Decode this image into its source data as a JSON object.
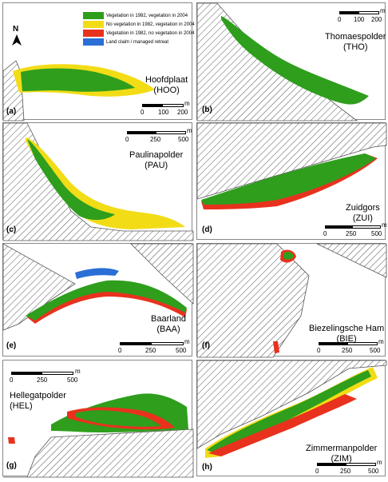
{
  "colors": {
    "green": "#2e9e1c",
    "yellow": "#f2dc16",
    "red": "#e8321e",
    "blue": "#2a6fd6",
    "hatch": "#555555"
  },
  "legend": {
    "items": [
      {
        "label": "Vegetation in 1982, vegetation in 2004",
        "color": "#2e9e1c"
      },
      {
        "label": "No vegetation in 1982, vegetation in 2004",
        "color": "#f2dc16"
      },
      {
        "label": "Vegetation in 1982, no vegetation in 2004",
        "color": "#e8321e"
      },
      {
        "label": "Land claim / managed retreat",
        "color": "#2a6fd6"
      }
    ]
  },
  "north": {
    "label": "N"
  },
  "panels": [
    {
      "id": "a",
      "letter": "(a)",
      "name": "Hoofdplaat",
      "code": "(HOO)",
      "scale": {
        "unit": "m",
        "labels": [
          "0",
          "100",
          "200"
        ]
      }
    },
    {
      "id": "b",
      "letter": "(b)",
      "name": "Thomaespolder",
      "code": "(THO)",
      "scale": {
        "unit": "m",
        "labels": [
          "0",
          "100",
          "200"
        ]
      }
    },
    {
      "id": "c",
      "letter": "(c)",
      "name": "Paulinapolder",
      "code": "(PAU)",
      "scale": {
        "unit": "m",
        "labels": [
          "0",
          "250",
          "500"
        ]
      }
    },
    {
      "id": "d",
      "letter": "(d)",
      "name": "Zuidgors",
      "code": "(ZUI)",
      "scale": {
        "unit": "m",
        "labels": [
          "0",
          "250",
          "500"
        ]
      }
    },
    {
      "id": "e",
      "letter": "(e)",
      "name": "Baarland",
      "code": "(BAA)",
      "scale": {
        "unit": "m",
        "labels": [
          "0",
          "250",
          "500"
        ]
      }
    },
    {
      "id": "f",
      "letter": "(f)",
      "name": "Biezelingsche Ham",
      "code": "(BIE)",
      "scale": {
        "unit": "m",
        "labels": [
          "0",
          "250",
          "500"
        ]
      }
    },
    {
      "id": "g",
      "letter": "(g)",
      "name": "Hellegatpolder",
      "code": "(HEL)",
      "scale": {
        "unit": "m",
        "labels": [
          "0",
          "250",
          "500"
        ]
      }
    },
    {
      "id": "h",
      "letter": "(h)",
      "name": "Zimmermanpolder",
      "code": "(ZIM)",
      "scale": {
        "unit": "m",
        "labels": [
          "0",
          "250",
          "500"
        ]
      }
    }
  ]
}
